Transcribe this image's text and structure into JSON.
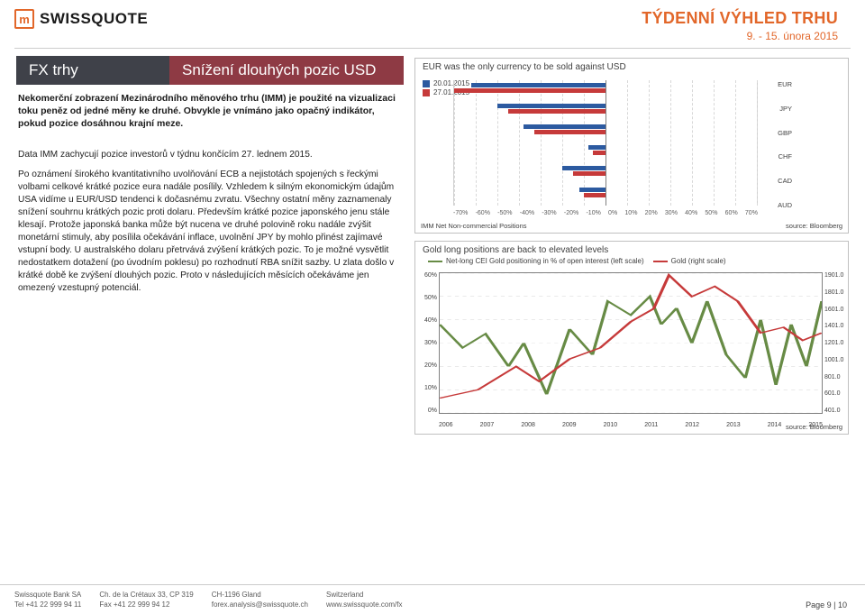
{
  "brand": {
    "logo_glyph": "m",
    "logo_text": "SWISSQUOTE",
    "logo_color": "#e2672a"
  },
  "header": {
    "title": "TÝDENNÍ VÝHLED TRHU",
    "date_range": "9. - 15. února 2015"
  },
  "section_titles": {
    "left": "FX trhy",
    "right": "Snížení dlouhých pozic USD"
  },
  "intro_bold": "Nekomerční zobrazení Mezinárodního měnového trhu (IMM) je použité na vizualizaci toku peněz od jedné měny ke druhé. Obvykle je vnímáno jako opačný indikátor, pokud pozice dosáhnou krajní meze.",
  "intro_line2": "Data IMM zachycují pozice investorů v týdnu končícím 27. lednem 2015.",
  "body_paragraph": "Po oznámení širokého kvantitativního uvolňování ECB a nejistotách spojených s řeckými volbami celkové krátké pozice eura nadále posílily. Vzhledem k silným ekonomickým údajům USA vidíme u EUR/USD tendenci k dočasnému zvratu. Všechny ostatní měny zaznamenaly snížení souhrnu krátkých pozic proti dolaru. Především krátké pozice japonského jenu stále klesají. Protože japonská banka může být nucena ve druhé polovině roku nadále zvýšit monetární stimuly, aby posílila očekávání inflace, uvolnění JPY by mohlo přinést zajímavé vstupní body. U australského dolaru přetrvává zvýšení krátkých pozic. To je možné vysvětlit nedostatkem dotažení (po úvodním poklesu) po rozhodnutí RBA snížit sazby. U zlata došlo v krátké době ke zvýšení dlouhých pozic. Proto v následujících měsících očekáváme jen omezený vzestupný potenciál.",
  "chart1": {
    "title": "EUR was the only currency to be sold against USD",
    "date_legend": [
      {
        "label": "20.01.2015",
        "color": "#2c5aa0"
      },
      {
        "label": "27.01.2015",
        "color": "#c63a3a"
      }
    ],
    "currencies": [
      "EUR",
      "JPY",
      "GBP",
      "CHF",
      "CAD",
      "AUD"
    ],
    "series_a": [
      -62,
      -50,
      -38,
      -8,
      -20,
      -12
    ],
    "series_b": [
      -70,
      -45,
      -33,
      -6,
      -15,
      -10
    ],
    "x_ticks": [
      "-70%",
      "-60%",
      "-50%",
      "-40%",
      "-30%",
      "-20%",
      "-10%",
      "0%",
      "10%",
      "20%",
      "30%",
      "40%",
      "50%",
      "60%",
      "70%"
    ],
    "x_range": [
      -70,
      70
    ],
    "axis_label": "IMM Net Non-commercial Positions",
    "source": "source: Bloomberg",
    "colors": {
      "series_a": "#2c5aa0",
      "series_b": "#c63a3a",
      "grid": "#d8d8d8",
      "text": "#404040"
    }
  },
  "chart2": {
    "title": "Gold long positions are back to elevated levels",
    "legend": [
      {
        "label": "Net-long CEI Gold positioning in % of open interest (left scale)",
        "color": "#678b45",
        "dash": "none"
      },
      {
        "label": "Gold (right scale)",
        "color": "#c63a3a",
        "dash": "none"
      }
    ],
    "y_left_ticks": [
      "60%",
      "50%",
      "40%",
      "30%",
      "20%",
      "10%",
      "0%"
    ],
    "y_left_range": [
      0,
      60
    ],
    "y_right_ticks": [
      "1901.0",
      "1801.0",
      "1601.0",
      "1401.0",
      "1201.0",
      "1001.0",
      "801.0",
      "601.0",
      "401.0"
    ],
    "y_right_range": [
      401,
      1901
    ],
    "x_ticks": [
      "2006",
      "2007",
      "2008",
      "2009",
      "2010",
      "2011",
      "2012",
      "2013",
      "2014",
      "2015"
    ],
    "gold_pct": [
      [
        0.0,
        38
      ],
      [
        0.06,
        28
      ],
      [
        0.12,
        34
      ],
      [
        0.18,
        20
      ],
      [
        0.22,
        30
      ],
      [
        0.28,
        8
      ],
      [
        0.34,
        36
      ],
      [
        0.4,
        25
      ],
      [
        0.44,
        48
      ],
      [
        0.5,
        42
      ],
      [
        0.55,
        50
      ],
      [
        0.58,
        38
      ],
      [
        0.62,
        45
      ],
      [
        0.66,
        30
      ],
      [
        0.7,
        48
      ],
      [
        0.75,
        25
      ],
      [
        0.8,
        15
      ],
      [
        0.84,
        40
      ],
      [
        0.88,
        12
      ],
      [
        0.92,
        38
      ],
      [
        0.96,
        20
      ],
      [
        1.0,
        48
      ]
    ],
    "gold_price": [
      [
        0.0,
        560
      ],
      [
        0.1,
        650
      ],
      [
        0.2,
        900
      ],
      [
        0.26,
        740
      ],
      [
        0.34,
        980
      ],
      [
        0.42,
        1100
      ],
      [
        0.5,
        1380
      ],
      [
        0.56,
        1520
      ],
      [
        0.6,
        1880
      ],
      [
        0.66,
        1650
      ],
      [
        0.72,
        1760
      ],
      [
        0.78,
        1600
      ],
      [
        0.84,
        1260
      ],
      [
        0.9,
        1320
      ],
      [
        0.95,
        1180
      ],
      [
        1.0,
        1260
      ]
    ],
    "colors": {
      "pct_line": "#678b45",
      "price_line": "#c63a3a",
      "grid": "#c8c8c8",
      "border": "#808080"
    },
    "source": "source: Bloomberg"
  },
  "footer": {
    "col1": {
      "a": "Swissquote Bank SA",
      "b": "Tel +41 22 999 94 11"
    },
    "col2": {
      "a": "Ch. de la Crétaux 33, CP 319",
      "b": "Fax +41 22 999 94 12"
    },
    "col3": {
      "a": "CH-1196 Gland",
      "b": "forex.analysis@swissquote.ch"
    },
    "col4": {
      "a": "Switzerland",
      "b": "www.swissquote.com/fx"
    },
    "page": "Page 9 | 10"
  }
}
